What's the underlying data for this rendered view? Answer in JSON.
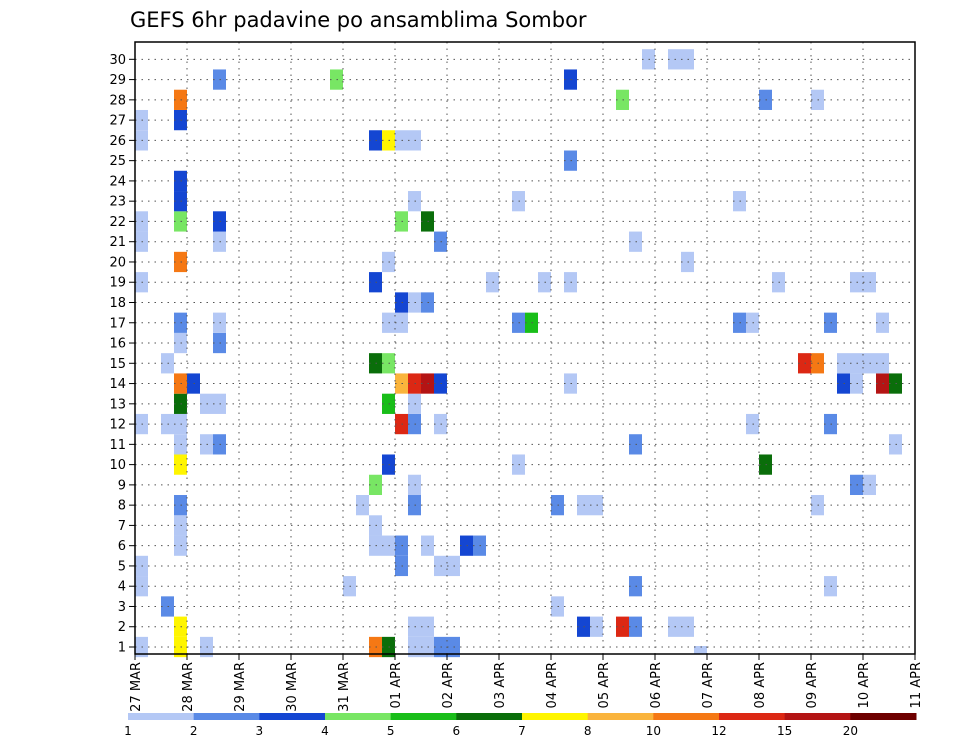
{
  "chart_data": {
    "type": "heatmap",
    "title": "GEFS 6hr padavine po ansamblima Sombor",
    "xlabel": "",
    "ylabel": "",
    "x_ticks": [
      "27 MAR",
      "28 MAR",
      "29 MAR",
      "30 MAR",
      "31 MAR",
      "01 APR",
      "02 APR",
      "03 APR",
      "04 APR",
      "05 APR",
      "06 APR",
      "07 APR",
      "08 APR",
      "09 APR",
      "10 APR",
      "11 APR"
    ],
    "y_ticks": [
      1,
      2,
      3,
      4,
      5,
      6,
      7,
      8,
      9,
      10,
      11,
      12,
      13,
      14,
      15,
      16,
      17,
      18,
      19,
      20,
      21,
      22,
      23,
      24,
      25,
      26,
      27,
      28,
      29,
      30
    ],
    "xlim_days": [
      0,
      15
    ],
    "ylim_members": [
      0,
      30
    ],
    "steps_per_day": 4,
    "grid": true,
    "legend_position": "bottom",
    "color_scale": {
      "labels": [
        "1",
        "2",
        "3",
        "4",
        "5",
        "6",
        "7",
        "8",
        "10",
        "12",
        "15",
        "20"
      ],
      "colors": [
        "#b4c8f5",
        "#5a8ae6",
        "#1446d2",
        "#78e664",
        "#19be19",
        "#0a6e0a",
        "#fff500",
        "#fab43c",
        "#f57814",
        "#dc2814",
        "#b41414",
        "#6e0000"
      ]
    },
    "cells_note": "each cell: [6-hour step index from 27 MAR 00UTC, ensemble member, color class index (0-based into color_scale.colors)]",
    "cells": [
      [
        0,
        1,
        0
      ],
      [
        0,
        4,
        0
      ],
      [
        0,
        5,
        0
      ],
      [
        0,
        12,
        0
      ],
      [
        0,
        19,
        0
      ],
      [
        0,
        21,
        0
      ],
      [
        0,
        22,
        0
      ],
      [
        0,
        26,
        0
      ],
      [
        0,
        27,
        0
      ],
      [
        2,
        3,
        1
      ],
      [
        2,
        12,
        0
      ],
      [
        2,
        15,
        0
      ],
      [
        3,
        0,
        4
      ],
      [
        3,
        1,
        6
      ],
      [
        3,
        2,
        6
      ],
      [
        3,
        6,
        0
      ],
      [
        3,
        7,
        0
      ],
      [
        3,
        8,
        1
      ],
      [
        3,
        10,
        6
      ],
      [
        3,
        11,
        0
      ],
      [
        3,
        12,
        0
      ],
      [
        3,
        13,
        5
      ],
      [
        3,
        14,
        8
      ],
      [
        3,
        16,
        0
      ],
      [
        3,
        17,
        1
      ],
      [
        3,
        20,
        8
      ],
      [
        3,
        22,
        3
      ],
      [
        3,
        23,
        2
      ],
      [
        3,
        24,
        2
      ],
      [
        3,
        27,
        2
      ],
      [
        3,
        28,
        8
      ],
      [
        4,
        14,
        2
      ],
      [
        5,
        1,
        0
      ],
      [
        5,
        11,
        0
      ],
      [
        5,
        13,
        0
      ],
      [
        6,
        11,
        1
      ],
      [
        6,
        13,
        0
      ],
      [
        6,
        16,
        1
      ],
      [
        6,
        17,
        0
      ],
      [
        6,
        21,
        0
      ],
      [
        6,
        22,
        2
      ],
      [
        6,
        29,
        1
      ],
      [
        15,
        29,
        3
      ],
      [
        16,
        4,
        0
      ],
      [
        17,
        8,
        0
      ],
      [
        18,
        1,
        8
      ],
      [
        18,
        6,
        0
      ],
      [
        18,
        7,
        0
      ],
      [
        18,
        9,
        3
      ],
      [
        18,
        15,
        5
      ],
      [
        18,
        19,
        2
      ],
      [
        18,
        26,
        2
      ],
      [
        19,
        1,
        5
      ],
      [
        19,
        6,
        0
      ],
      [
        19,
        10,
        2
      ],
      [
        19,
        13,
        4
      ],
      [
        19,
        15,
        3
      ],
      [
        19,
        17,
        0
      ],
      [
        19,
        20,
        0
      ],
      [
        19,
        26,
        6
      ],
      [
        20,
        5,
        1
      ],
      [
        20,
        6,
        1
      ],
      [
        20,
        12,
        9
      ],
      [
        20,
        14,
        7
      ],
      [
        20,
        17,
        0
      ],
      [
        20,
        18,
        2
      ],
      [
        20,
        22,
        3
      ],
      [
        20,
        26,
        0
      ],
      [
        21,
        1,
        0
      ],
      [
        21,
        2,
        0
      ],
      [
        21,
        8,
        1
      ],
      [
        21,
        9,
        0
      ],
      [
        21,
        12,
        1
      ],
      [
        21,
        13,
        0
      ],
      [
        21,
        14,
        9
      ],
      [
        21,
        18,
        0
      ],
      [
        21,
        23,
        0
      ],
      [
        21,
        26,
        0
      ],
      [
        22,
        1,
        0
      ],
      [
        22,
        2,
        0
      ],
      [
        22,
        6,
        0
      ],
      [
        22,
        14,
        10
      ],
      [
        22,
        18,
        1
      ],
      [
        22,
        22,
        5
      ],
      [
        23,
        1,
        1
      ],
      [
        23,
        5,
        0
      ],
      [
        23,
        12,
        0
      ],
      [
        23,
        14,
        2
      ],
      [
        23,
        21,
        1
      ],
      [
        24,
        1,
        1
      ],
      [
        24,
        5,
        0
      ],
      [
        25,
        6,
        2
      ],
      [
        26,
        6,
        1
      ],
      [
        27,
        19,
        0
      ],
      [
        29,
        10,
        0
      ],
      [
        29,
        17,
        1
      ],
      [
        29,
        23,
        0
      ],
      [
        30,
        17,
        4
      ],
      [
        31,
        19,
        0
      ],
      [
        32,
        3,
        0
      ],
      [
        32,
        8,
        1
      ],
      [
        33,
        14,
        0
      ],
      [
        33,
        19,
        0
      ],
      [
        33,
        25,
        1
      ],
      [
        33,
        29,
        2
      ],
      [
        34,
        2,
        2
      ],
      [
        34,
        8,
        0
      ],
      [
        35,
        2,
        0
      ],
      [
        35,
        8,
        0
      ],
      [
        37,
        2,
        9
      ],
      [
        37,
        28,
        3
      ],
      [
        38,
        2,
        1
      ],
      [
        38,
        4,
        1
      ],
      [
        38,
        11,
        1
      ],
      [
        38,
        21,
        0
      ],
      [
        39,
        30,
        0
      ],
      [
        41,
        2,
        0
      ],
      [
        41,
        30,
        0
      ],
      [
        42,
        2,
        0
      ],
      [
        42,
        20,
        0
      ],
      [
        42,
        30,
        0
      ],
      [
        43,
        0,
        0
      ],
      [
        46,
        17,
        1
      ],
      [
        46,
        23,
        0
      ],
      [
        47,
        12,
        0
      ],
      [
        47,
        17,
        0
      ],
      [
        48,
        10,
        5
      ],
      [
        48,
        28,
        1
      ],
      [
        49,
        19,
        0
      ],
      [
        51,
        15,
        9
      ],
      [
        52,
        8,
        0
      ],
      [
        52,
        15,
        8
      ],
      [
        52,
        28,
        0
      ],
      [
        53,
        4,
        0
      ],
      [
        53,
        12,
        1
      ],
      [
        53,
        17,
        1
      ],
      [
        54,
        14,
        2
      ],
      [
        54,
        15,
        0
      ],
      [
        55,
        9,
        1
      ],
      [
        55,
        14,
        0
      ],
      [
        55,
        15,
        0
      ],
      [
        55,
        19,
        0
      ],
      [
        56,
        9,
        0
      ],
      [
        56,
        15,
        0
      ],
      [
        56,
        19,
        0
      ],
      [
        57,
        14,
        10
      ],
      [
        57,
        15,
        0
      ],
      [
        57,
        17,
        0
      ],
      [
        58,
        11,
        0
      ],
      [
        58,
        14,
        5
      ]
    ]
  }
}
